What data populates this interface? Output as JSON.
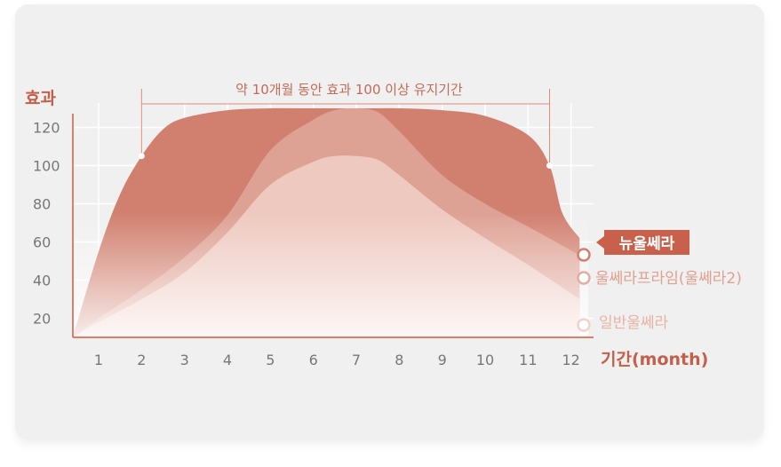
{
  "chart_data": {
    "type": "area",
    "ylabel": "효과",
    "xlabel": "기간(month)",
    "x_ticks": [
      "1",
      "2",
      "3",
      "4",
      "5",
      "6",
      "7",
      "8",
      "9",
      "10",
      "11",
      "12"
    ],
    "y_ticks": [
      "20",
      "40",
      "60",
      "80",
      "100",
      "120"
    ],
    "ylim": [
      10,
      130
    ],
    "xlim": [
      0.4,
      12.4
    ],
    "grid": true,
    "annotation": "약 10개월 동안 효과 100 이상 유지기간",
    "annotation_range_x": [
      2,
      11.5
    ],
    "series": [
      {
        "name": "뉴울쎄라",
        "color": "#d18070",
        "x": [
          0.4,
          1.0,
          1.5,
          2.0,
          2.5,
          3.0,
          4.0,
          5.0,
          6.0,
          7.0,
          8.0,
          9.0,
          10.0,
          11.0,
          11.5,
          11.8,
          12.2
        ],
        "y": [
          10,
          55,
          85,
          105,
          119,
          125,
          129,
          130,
          130,
          130,
          130,
          129,
          126,
          116,
          100,
          75,
          62
        ]
      },
      {
        "name": "울쎄라프라임(울쎄라2)",
        "color": "#e2ada2",
        "x": [
          0.4,
          1,
          2,
          3,
          4,
          5,
          6,
          6.5,
          7.0,
          7.5,
          8,
          9,
          10,
          11,
          12.2
        ],
        "y": [
          10,
          20,
          35,
          52,
          74,
          108,
          124,
          129,
          130,
          128,
          118,
          95,
          80,
          68,
          53
        ]
      },
      {
        "name": "일반울쎄라",
        "color": "#f1d3cb",
        "x": [
          0.4,
          1,
          2,
          3,
          4,
          5,
          6,
          6.5,
          7.0,
          7.5,
          8,
          9,
          10,
          11,
          12.2
        ],
        "y": [
          10,
          18,
          30,
          44,
          65,
          90,
          102,
          105,
          105,
          103,
          95,
          77,
          62,
          48,
          30
        ]
      }
    ],
    "legend": [
      {
        "label": "뉴울쎄라",
        "highlighted": true
      },
      {
        "label": "울쎄라프라임(울쎄라2)",
        "highlighted": false
      },
      {
        "label": "일반울쎄라",
        "highlighted": false
      }
    ]
  }
}
